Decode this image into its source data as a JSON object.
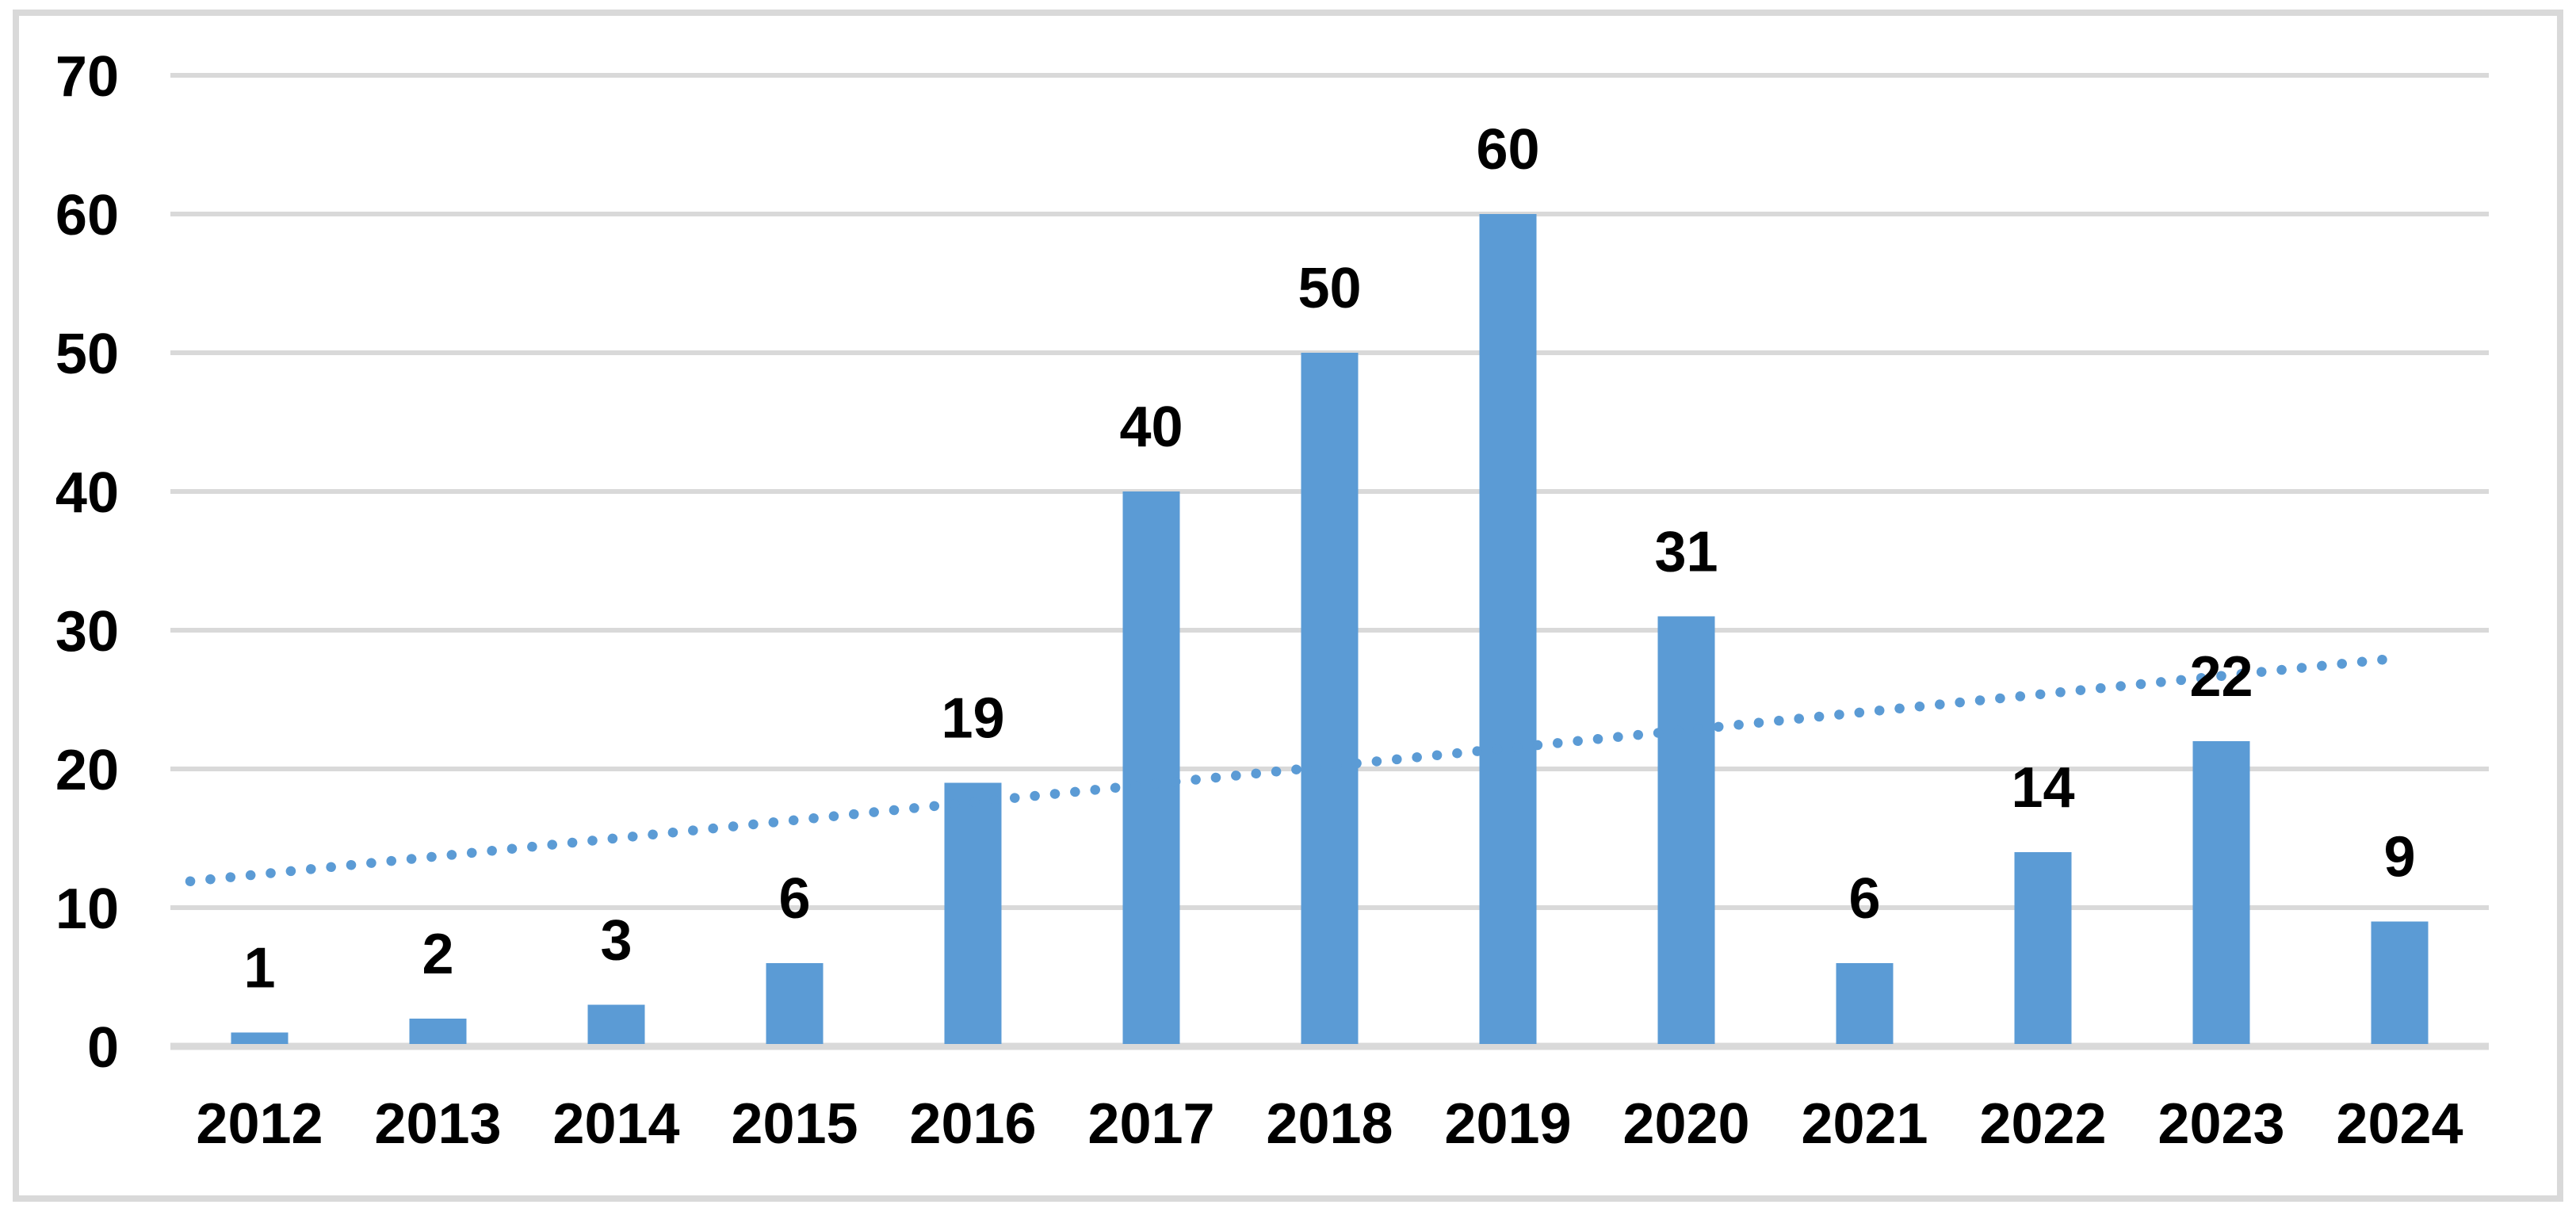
{
  "chart_data": {
    "type": "bar",
    "title": "",
    "xlabel": "",
    "ylabel": "",
    "categories": [
      "2012",
      "2013",
      "2014",
      "2015",
      "2016",
      "2017",
      "2018",
      "2019",
      "2020",
      "2021",
      "2022",
      "2023",
      "2024"
    ],
    "values": [
      1,
      2,
      3,
      6,
      19,
      40,
      50,
      60,
      31,
      6,
      14,
      22,
      9
    ],
    "data_labels": [
      "1",
      "2",
      "3",
      "6",
      "19",
      "40",
      "50",
      "60",
      "31",
      "6",
      "14",
      "22",
      "9"
    ],
    "ylim": [
      0,
      70
    ],
    "y_ticks": [
      "0",
      "10",
      "20",
      "30",
      "40",
      "50",
      "60",
      "70"
    ],
    "grid": "horizontal",
    "legend": "none",
    "trendline": {
      "type": "linear",
      "style": "dotted",
      "start_value": 11.9,
      "end_value": 28.0,
      "color": "#5B9BD5"
    },
    "colors": {
      "bar": "#5B9BD5",
      "gridline": "#D9D9D9",
      "axis_line": "#D9D9D9",
      "frame_border": "#D9D9D9",
      "text": "#000000",
      "background": "#FFFFFF"
    }
  }
}
